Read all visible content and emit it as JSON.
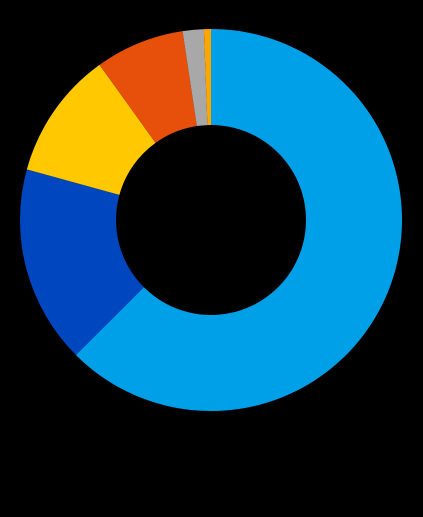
{
  "chart_data": {
    "type": "pie",
    "variant": "donut",
    "start_angle_deg": 0,
    "direction": "clockwise",
    "slices": [
      {
        "value": 63.0,
        "color": "#00A0E9"
      },
      {
        "value": 16.9,
        "color": "#0046BE"
      },
      {
        "value": 10.9,
        "color": "#FFC800"
      },
      {
        "value": 7.6,
        "color": "#E6500A"
      },
      {
        "value": 1.8,
        "color": "#A8A8A8"
      },
      {
        "value": 0.6,
        "color": "#FFA500"
      }
    ],
    "background": "#000000",
    "legend": "none",
    "title": ""
  }
}
